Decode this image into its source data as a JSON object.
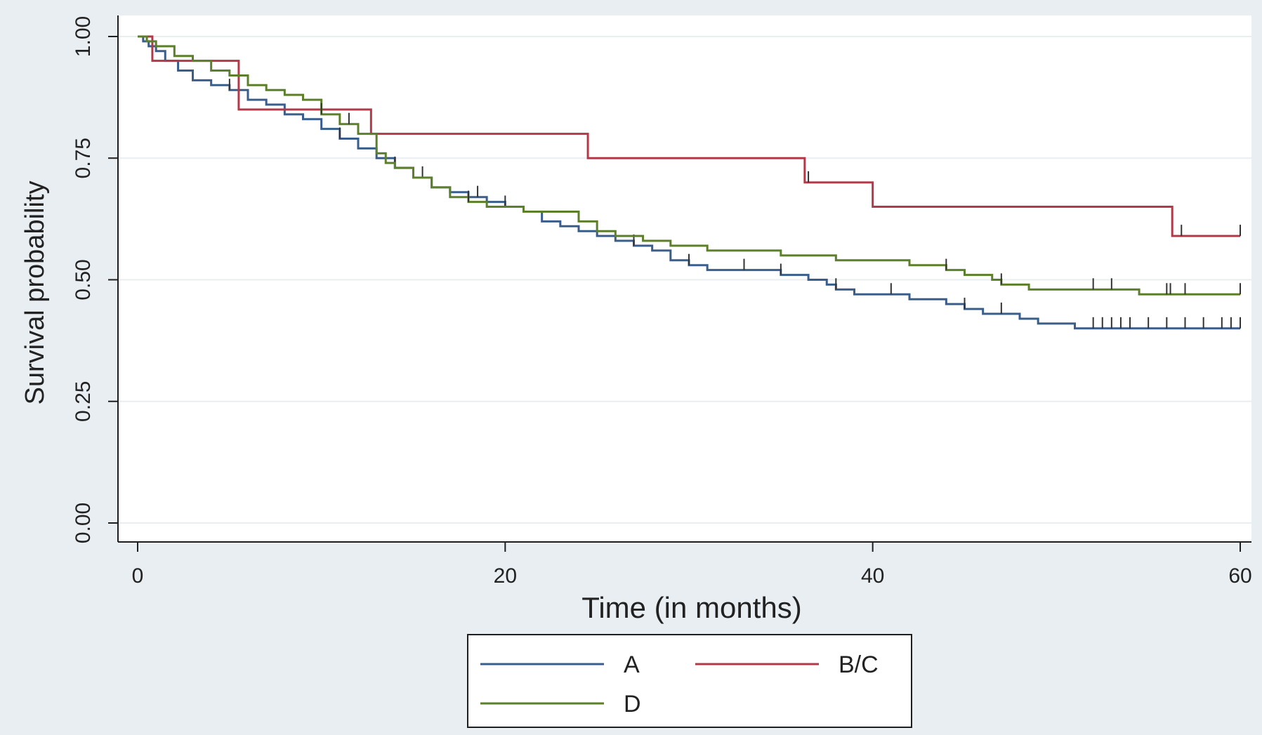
{
  "colors": {
    "outer_background": "#e8eef2",
    "plot_background": "#ffffff",
    "grid": "#e9eef1",
    "axis": "#1f1f1f",
    "text": "#222222"
  },
  "chart_data": {
    "type": "line",
    "step": true,
    "title": "",
    "xlabel": "Time (in months)",
    "ylabel": "Survival probability",
    "xlim": [
      0,
      60
    ],
    "ylim": [
      0,
      1
    ],
    "x_ticks": [
      0,
      20,
      40,
      60
    ],
    "x_tick_labels": [
      "0",
      "20",
      "40",
      "60"
    ],
    "y_ticks": [
      0,
      0.25,
      0.5,
      0.75,
      1
    ],
    "y_tick_labels": [
      "0.00",
      "0.25",
      "0.50",
      "0.75",
      "1.00"
    ],
    "grid": "horizontal",
    "legend_position": "bottom-center",
    "series": [
      {
        "name": "A",
        "color": "#3a5e8c",
        "points": [
          [
            0,
            1.0
          ],
          [
            0.3,
            0.99
          ],
          [
            0.6,
            0.98
          ],
          [
            1.0,
            0.97
          ],
          [
            1.5,
            0.95
          ],
          [
            2.2,
            0.93
          ],
          [
            3.0,
            0.91
          ],
          [
            4.0,
            0.9
          ],
          [
            5.0,
            0.89
          ],
          [
            6.0,
            0.87
          ],
          [
            7.0,
            0.86
          ],
          [
            8.0,
            0.84
          ],
          [
            9.0,
            0.83
          ],
          [
            10.0,
            0.81
          ],
          [
            11.0,
            0.79
          ],
          [
            12.0,
            0.77
          ],
          [
            13.0,
            0.75
          ],
          [
            14.0,
            0.73
          ],
          [
            15.0,
            0.71
          ],
          [
            16.0,
            0.69
          ],
          [
            17.0,
            0.68
          ],
          [
            18.0,
            0.67
          ],
          [
            19.0,
            0.66
          ],
          [
            20.0,
            0.65
          ],
          [
            21.0,
            0.64
          ],
          [
            22.0,
            0.62
          ],
          [
            23.0,
            0.61
          ],
          [
            24.0,
            0.6
          ],
          [
            25.0,
            0.59
          ],
          [
            26.0,
            0.58
          ],
          [
            27.0,
            0.57
          ],
          [
            28.0,
            0.56
          ],
          [
            29.0,
            0.54
          ],
          [
            30.0,
            0.53
          ],
          [
            31.0,
            0.52
          ],
          [
            33.0,
            0.52
          ],
          [
            35.0,
            0.51
          ],
          [
            36.0,
            0.51
          ],
          [
            36.5,
            0.5
          ],
          [
            37.0,
            0.5
          ],
          [
            37.5,
            0.49
          ],
          [
            38.0,
            0.48
          ],
          [
            39.0,
            0.47
          ],
          [
            41.0,
            0.47
          ],
          [
            42.0,
            0.46
          ],
          [
            43.0,
            0.46
          ],
          [
            44.0,
            0.45
          ],
          [
            45.0,
            0.44
          ],
          [
            46.0,
            0.43
          ],
          [
            48.0,
            0.42
          ],
          [
            49.0,
            0.41
          ],
          [
            50.0,
            0.41
          ],
          [
            51.0,
            0.4
          ],
          [
            56.0,
            0.4
          ],
          [
            60.0,
            0.4
          ]
        ],
        "censor": [
          5,
          11,
          14,
          15.5,
          18.5,
          20,
          27,
          30,
          33,
          35,
          38,
          41,
          45,
          47,
          52,
          52.5,
          53,
          53.5,
          54,
          55,
          56,
          57,
          58,
          59,
          59.5,
          60
        ]
      },
      {
        "name": "B/C",
        "color": "#b23a48",
        "points": [
          [
            0,
            1.0
          ],
          [
            0.8,
            1.0
          ],
          [
            0.8,
            0.95
          ],
          [
            5.5,
            0.95
          ],
          [
            5.5,
            0.85
          ],
          [
            12.7,
            0.85
          ],
          [
            12.7,
            0.8
          ],
          [
            24.5,
            0.8
          ],
          [
            24.5,
            0.75
          ],
          [
            36.3,
            0.75
          ],
          [
            36.3,
            0.7
          ],
          [
            40.0,
            0.7
          ],
          [
            40.0,
            0.65
          ],
          [
            56.3,
            0.65
          ],
          [
            56.3,
            0.59
          ],
          [
            60.0,
            0.59
          ]
        ],
        "censor": [
          36.5,
          56.8,
          60
        ]
      },
      {
        "name": "D",
        "color": "#5c7f2a",
        "points": [
          [
            0,
            1.0
          ],
          [
            0.5,
            0.99
          ],
          [
            1.0,
            0.98
          ],
          [
            2.0,
            0.96
          ],
          [
            3.0,
            0.95
          ],
          [
            4.0,
            0.93
          ],
          [
            5.0,
            0.92
          ],
          [
            6.0,
            0.9
          ],
          [
            7.0,
            0.89
          ],
          [
            8.0,
            0.88
          ],
          [
            9.0,
            0.87
          ],
          [
            10.0,
            0.84
          ],
          [
            11.0,
            0.82
          ],
          [
            12.0,
            0.8
          ],
          [
            13.0,
            0.76
          ],
          [
            13.5,
            0.74
          ],
          [
            14.0,
            0.73
          ],
          [
            15.0,
            0.71
          ],
          [
            16.0,
            0.69
          ],
          [
            17.0,
            0.67
          ],
          [
            18.0,
            0.66
          ],
          [
            19.0,
            0.65
          ],
          [
            20.0,
            0.65
          ],
          [
            21.0,
            0.64
          ],
          [
            23.5,
            0.64
          ],
          [
            24.0,
            0.62
          ],
          [
            25.0,
            0.6
          ],
          [
            26.0,
            0.59
          ],
          [
            27.5,
            0.58
          ],
          [
            29.0,
            0.57
          ],
          [
            30.0,
            0.57
          ],
          [
            31.0,
            0.56
          ],
          [
            33.0,
            0.56
          ],
          [
            35.0,
            0.55
          ],
          [
            37.0,
            0.55
          ],
          [
            38.0,
            0.54
          ],
          [
            41.0,
            0.54
          ],
          [
            42.0,
            0.53
          ],
          [
            44.0,
            0.52
          ],
          [
            45.0,
            0.51
          ],
          [
            46.5,
            0.5
          ],
          [
            47.0,
            0.49
          ],
          [
            48.5,
            0.48
          ],
          [
            54.0,
            0.48
          ],
          [
            54.5,
            0.47
          ],
          [
            60.0,
            0.47
          ]
        ],
        "censor": [
          10,
          11.5,
          18,
          44,
          47,
          52,
          53,
          56,
          56.2,
          57,
          60
        ]
      }
    ]
  }
}
